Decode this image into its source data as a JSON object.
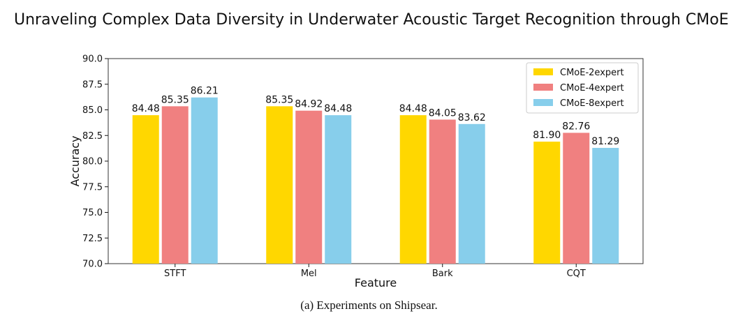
{
  "page_title": "Unraveling Complex Data Diversity in Underwater Acoustic Target Recognition through CMoE",
  "caption": "(a)  Experiments on Shipsear.",
  "chart_data": {
    "type": "bar",
    "title": "",
    "xlabel": "Feature",
    "ylabel": "Accuracy",
    "categories": [
      "STFT",
      "Mel",
      "Bark",
      "CQT"
    ],
    "ylim": [
      70.0,
      90.0
    ],
    "yticks": [
      "70.0",
      "72.5",
      "75.0",
      "77.5",
      "80.0",
      "82.5",
      "85.0",
      "87.5",
      "90.0"
    ],
    "grid": false,
    "legend_position": "top-right",
    "series": [
      {
        "name": "CMoE-2expert",
        "color": "#FFD700",
        "values": [
          84.48,
          85.35,
          84.48,
          81.9
        ],
        "labels": [
          "84.48",
          "85.35",
          "84.48",
          "81.90"
        ]
      },
      {
        "name": "CMoE-4expert",
        "color": "#F08080",
        "values": [
          85.35,
          84.92,
          84.05,
          82.76
        ],
        "labels": [
          "85.35",
          "84.92",
          "84.05",
          "82.76"
        ]
      },
      {
        "name": "CMoE-8expert",
        "color": "#87CEEB",
        "values": [
          86.21,
          84.48,
          83.62,
          81.29
        ],
        "labels": [
          "86.21",
          "84.48",
          "83.62",
          "81.29"
        ]
      }
    ]
  }
}
